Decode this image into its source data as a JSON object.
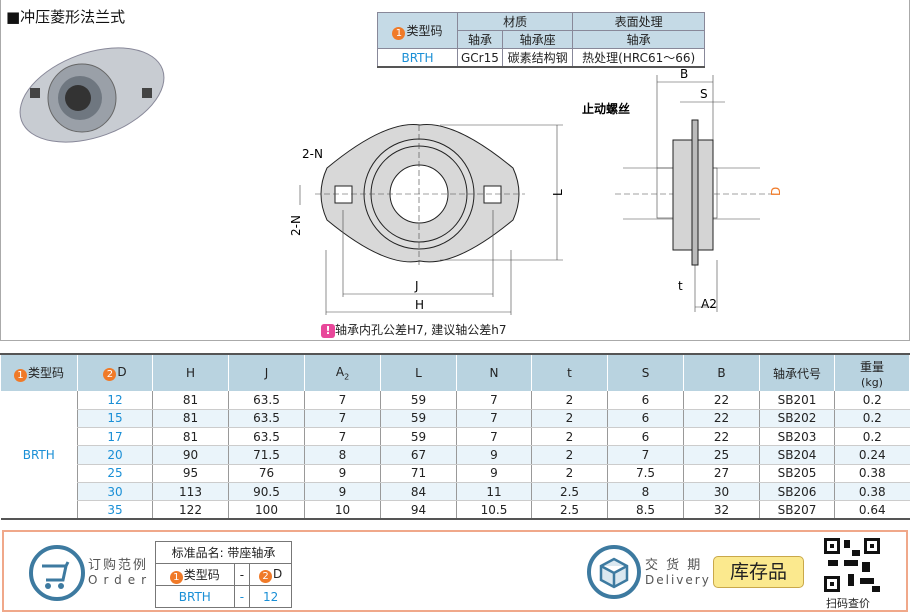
{
  "title": "■冲压菱形法兰式",
  "spec_table": {
    "type_label": "类型码",
    "material": "材质",
    "surface": "表面处理",
    "bearing": "轴承",
    "housing": "轴承座",
    "surface_bearing": "轴承",
    "type": "BRTH",
    "bearing_mat": "GCr15",
    "housing_mat": "碳素结构钢",
    "treatment": "热处理(HRC61～66)"
  },
  "drawing": {
    "two_n": "2-N",
    "two_n_v": "2-N",
    "L": "L",
    "J": "J",
    "H": "H",
    "B": "B",
    "S": "S",
    "t": "t",
    "A2": "A2",
    "D": "D",
    "set_screw": "止动螺丝",
    "badge2": "2"
  },
  "note": {
    "icon": "!",
    "text": "轴承内孔公差H7, 建议轴公差h7"
  },
  "table": {
    "headers": [
      "类型码",
      "D",
      "H",
      "J",
      "A",
      "L",
      "N",
      "t",
      "S",
      "B",
      "轴承代号",
      "重量"
    ],
    "weight_unit": "(kg)",
    "a_sub": "2",
    "badge1": "1",
    "badge2": "2",
    "type": "BRTH",
    "rows": [
      [
        "12",
        "81",
        "63.5",
        "7",
        "59",
        "7",
        "2",
        "6",
        "22",
        "SB201",
        "0.2"
      ],
      [
        "15",
        "81",
        "63.5",
        "7",
        "59",
        "7",
        "2",
        "6",
        "22",
        "SB202",
        "0.2"
      ],
      [
        "17",
        "81",
        "63.5",
        "7",
        "59",
        "7",
        "2",
        "6",
        "22",
        "SB203",
        "0.2"
      ],
      [
        "20",
        "90",
        "71.5",
        "8",
        "67",
        "9",
        "2",
        "7",
        "25",
        "SB204",
        "0.24"
      ],
      [
        "25",
        "95",
        "76",
        "9",
        "71",
        "9",
        "2",
        "7.5",
        "27",
        "SB205",
        "0.38"
      ],
      [
        "30",
        "113",
        "90.5",
        "9",
        "84",
        "11",
        "2.5",
        "8",
        "30",
        "SB206",
        "0.38"
      ],
      [
        "35",
        "122",
        "100",
        "10",
        "94",
        "10.5",
        "2.5",
        "8.5",
        "32",
        "SB207",
        "0.64"
      ]
    ]
  },
  "order": {
    "cn": "订购范例",
    "en": "Order",
    "std_name": "标准品名: 带座轴承",
    "type_label": "类型码",
    "dash": "-",
    "d_label": "D",
    "type": "BRTH",
    "d": "12"
  },
  "delivery": {
    "cn": "交 货 期",
    "en": "Delivery",
    "badge": "库存品",
    "qr_label": "扫码查价"
  },
  "colors": {
    "accent": "#1a8fd6",
    "badge": "#f07a28",
    "header": "#b9d3e0",
    "stock": "#fbe98e"
  }
}
